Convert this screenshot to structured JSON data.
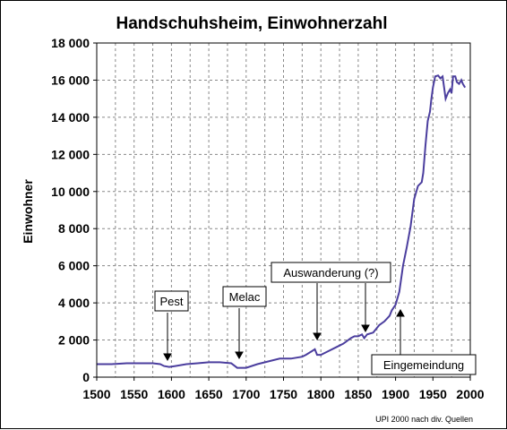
{
  "chart_data": {
    "type": "line",
    "title": "Handschuhsheim, Einwohnerzahl",
    "xlabel": "",
    "ylabel": "Einwohner",
    "xlim": [
      1500,
      2000
    ],
    "ylim": [
      0,
      18000
    ],
    "grid": true,
    "x_ticks": [
      1500,
      1550,
      1600,
      1650,
      1700,
      1750,
      1800,
      1850,
      1900,
      1950,
      2000
    ],
    "y_ticks": [
      "0",
      "2 000",
      "4 000",
      "6 000",
      "8 000",
      "10 000",
      "12 000",
      "14 000",
      "16 000",
      "18 000"
    ],
    "series": [
      {
        "color": "#4b3e9e",
        "points": [
          [
            1500,
            700
          ],
          [
            1520,
            700
          ],
          [
            1540,
            750
          ],
          [
            1560,
            750
          ],
          [
            1575,
            750
          ],
          [
            1585,
            700
          ],
          [
            1590,
            600
          ],
          [
            1597,
            550
          ],
          [
            1605,
            600
          ],
          [
            1620,
            700
          ],
          [
            1635,
            750
          ],
          [
            1650,
            800
          ],
          [
            1665,
            800
          ],
          [
            1680,
            750
          ],
          [
            1688,
            500
          ],
          [
            1700,
            500
          ],
          [
            1715,
            700
          ],
          [
            1730,
            850
          ],
          [
            1745,
            1000
          ],
          [
            1760,
            1000
          ],
          [
            1775,
            1100
          ],
          [
            1780,
            1200
          ],
          [
            1788,
            1400
          ],
          [
            1792,
            1500
          ],
          [
            1795,
            1200
          ],
          [
            1800,
            1200
          ],
          [
            1810,
            1400
          ],
          [
            1820,
            1600
          ],
          [
            1830,
            1800
          ],
          [
            1840,
            2100
          ],
          [
            1845,
            2200
          ],
          [
            1850,
            2200
          ],
          [
            1855,
            2300
          ],
          [
            1858,
            2100
          ],
          [
            1862,
            2300
          ],
          [
            1870,
            2400
          ],
          [
            1878,
            2800
          ],
          [
            1885,
            3000
          ],
          [
            1892,
            3300
          ],
          [
            1895,
            3600
          ],
          [
            1900,
            3900
          ],
          [
            1905,
            4600
          ],
          [
            1910,
            6000
          ],
          [
            1915,
            7000
          ],
          [
            1920,
            8100
          ],
          [
            1925,
            9600
          ],
          [
            1930,
            10300
          ],
          [
            1935,
            10500
          ],
          [
            1937,
            11000
          ],
          [
            1940,
            12500
          ],
          [
            1943,
            13800
          ],
          [
            1946,
            14300
          ],
          [
            1948,
            15000
          ],
          [
            1950,
            15600
          ],
          [
            1953,
            16200
          ],
          [
            1957,
            16250
          ],
          [
            1960,
            16100
          ],
          [
            1963,
            16200
          ],
          [
            1965,
            15600
          ],
          [
            1967,
            15000
          ],
          [
            1970,
            15300
          ],
          [
            1973,
            15500
          ],
          [
            1975,
            15300
          ],
          [
            1977,
            16200
          ],
          [
            1980,
            16200
          ],
          [
            1982,
            15900
          ],
          [
            1985,
            15800
          ],
          [
            1988,
            16000
          ],
          [
            1990,
            15800
          ],
          [
            1993,
            15600
          ]
        ]
      }
    ],
    "annotations": [
      {
        "text": "Pest",
        "year": 1592
      },
      {
        "text": "Melac",
        "year": 1690
      },
      {
        "text": "Auswanderung (?)",
        "year": 1790
      },
      {
        "text": "Auswanderung (?)",
        "year": 1857
      },
      {
        "text": "Eingemeindung",
        "year": 1903
      }
    ],
    "credit": "UPI 2000 nach div. Quellen"
  },
  "colors": {
    "line": "#4b3e9e",
    "plot_background": "#ffffff",
    "grid": "#888888"
  }
}
